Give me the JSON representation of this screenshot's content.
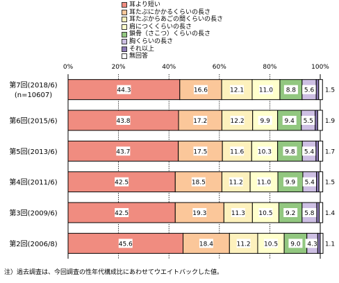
{
  "chart_data": {
    "type": "bar",
    "orientation": "horizontal",
    "stacked": true,
    "percent": true,
    "xlim": [
      0,
      100
    ],
    "x_ticks": [
      "0%",
      "20%",
      "40%",
      "60%",
      "80%",
      "100%"
    ],
    "categories": [
      "第7回(2018/6)\n(n=10607)",
      "第6回(2015/6)",
      "第5回(2013/6)",
      "第4回(2011/6)",
      "第3回(2009/6)",
      "第2回(2006/8)"
    ],
    "series": [
      {
        "name": "耳より短い",
        "color": "#f08c80",
        "values": [
          44.3,
          43.8,
          43.7,
          42.5,
          42.5,
          45.6
        ]
      },
      {
        "name": "耳たぶにかかるくらいの長さ",
        "color": "#fbc79a",
        "values": [
          16.6,
          17.2,
          17.5,
          18.5,
          19.3,
          18.4
        ]
      },
      {
        "name": "耳たぶからあごの間くらいの長さ",
        "color": "#fdf1bd",
        "values": [
          12.1,
          12.2,
          11.6,
          11.2,
          11.3,
          11.2
        ]
      },
      {
        "name": "肩につくくらいの長さ",
        "color": "#ffffcc",
        "values": [
          11.0,
          9.9,
          10.3,
          11.0,
          10.5,
          10.5
        ]
      },
      {
        "name": "鎖骨（さこつ）くらいの長さ",
        "color": "#92c780",
        "values": [
          8.8,
          9.4,
          9.8,
          9.9,
          9.2,
          9.0
        ]
      },
      {
        "name": "胸くらいの長さ",
        "color": "#cdbfe3",
        "values": [
          5.6,
          5.5,
          5.4,
          5.4,
          5.8,
          4.3
        ]
      },
      {
        "name": "それ以上",
        "color": "#8d7ab5",
        "values": [
          1.0,
          1.0,
          1.0,
          1.0,
          1.0,
          1.0
        ]
      },
      {
        "name": "無回答",
        "color": "#ffffff",
        "values": [
          1.5,
          1.9,
          1.7,
          1.5,
          1.4,
          1.1
        ]
      }
    ],
    "labels": [
      [
        "44.3",
        "16.6",
        "12.1",
        "11.0",
        "8.8",
        "5.6",
        "",
        "1.5"
      ],
      [
        "43.8",
        "17.2",
        "12.2",
        "9.9",
        "9.4",
        "5.5",
        "",
        "1.9"
      ],
      [
        "43.7",
        "17.5",
        "11.6",
        "10.3",
        "9.8",
        "5.4",
        "",
        "1.7"
      ],
      [
        "42.5",
        "18.5",
        "11.2",
        "11.0",
        "9.9",
        "5.4",
        "",
        "1.5"
      ],
      [
        "42.5",
        "19.3",
        "11.3",
        "10.5",
        "9.2",
        "5.8",
        "",
        "1.4"
      ],
      [
        "45.6",
        "18.4",
        "11.2",
        "10.5",
        "9.0",
        "4.3",
        "",
        "1.1"
      ]
    ],
    "grid": true,
    "legend_position": "top"
  },
  "note": "注）過去調査は、今回調査の性年代構成比にあわせてウエイトバックした値。"
}
